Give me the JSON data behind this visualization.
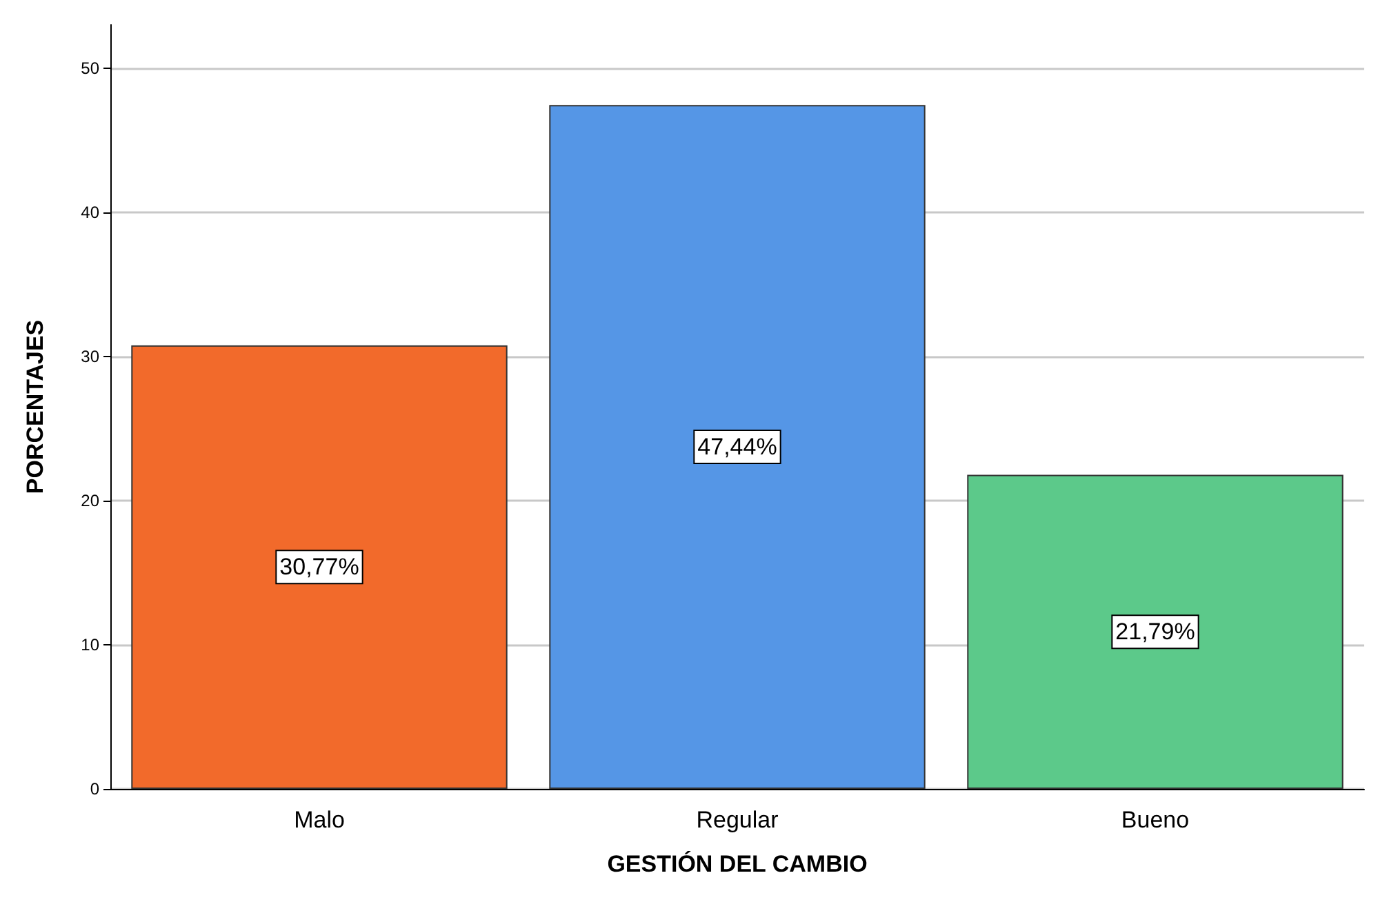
{
  "chart_data": {
    "type": "bar",
    "xlabel": "GESTIÓN DEL CAMBIO",
    "ylabel": "PORCENTAJES",
    "categories": [
      "Malo",
      "Regular",
      "Bueno"
    ],
    "values": [
      30.77,
      47.44,
      21.79
    ],
    "colors": [
      "#f26a2b",
      "#5596e6",
      "#5cc98a"
    ],
    "value_labels": [
      "30,77%",
      "47,44%",
      "21,79%"
    ],
    "ylim": [
      0,
      53
    ],
    "yticks": [
      0,
      10,
      20,
      30,
      40,
      50
    ],
    "grid": "y"
  }
}
